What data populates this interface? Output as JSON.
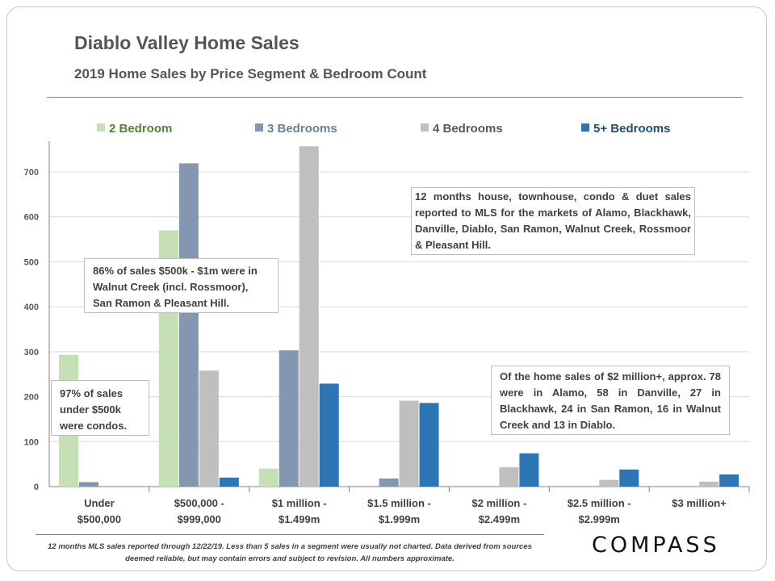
{
  "title": "Diablo Valley Home Sales",
  "subtitle": "2019 Home Sales by Price Segment & Bedroom Count",
  "colors": {
    "series": [
      "#c5e0b4",
      "#8497b0",
      "#bfbfbf",
      "#2e75b6"
    ],
    "legend_text": [
      "#548235",
      "#6b7f99",
      "#595959",
      "#1f4e79"
    ]
  },
  "chart_data": {
    "type": "bar",
    "title": "2019 Home Sales by Price Segment & Bedroom Count",
    "xlabel": "",
    "ylabel": "",
    "ylim": [
      0,
      760
    ],
    "yticks": [
      0,
      100,
      200,
      300,
      400,
      500,
      600,
      700
    ],
    "grid": true,
    "legend_position": "top",
    "categories": [
      [
        "Under",
        "$500,000"
      ],
      [
        "$500,000 -",
        "$999,000"
      ],
      [
        "$1 million -",
        "$1.499m"
      ],
      [
        "$1.5 million -",
        "$1.999m"
      ],
      [
        "$2 million -",
        "$2.499m"
      ],
      [
        "$2.5 million -",
        "$2.999m"
      ],
      [
        "$3 million+"
      ]
    ],
    "series": [
      {
        "name": "2 Bedroom",
        "values": [
          293,
          570,
          40,
          null,
          null,
          null,
          null
        ]
      },
      {
        "name": "3 Bedrooms",
        "values": [
          10,
          719,
          303,
          18,
          null,
          null,
          null
        ]
      },
      {
        "name": "4 Bedrooms",
        "values": [
          null,
          258,
          757,
          191,
          43,
          15,
          11
        ]
      },
      {
        "name": "5+ Bedrooms",
        "values": [
          null,
          20,
          229,
          186,
          74,
          38,
          27
        ]
      }
    ]
  },
  "annotations": {
    "note_500k_1m": "86% of sales $500k - $1m were in Walnut Creek (incl. Rossmoor), San Ramon & Pleasant Hill.",
    "note_under_500k": "97% of sales under $500k were condos.",
    "note_scope": "12 months house, townhouse, condo & duet sales reported to MLS for the markets of Alamo, Blackhawk, Danville, Diablo, San Ramon, Walnut Creek, Rossmoor & Pleasant Hill.",
    "note_2m_plus": "Of the home sales of $2 million+, approx. 78 were in Alamo, 58 in Danville, 27 in Blackhawk, 24 in San Ramon, 16 in Walnut Creek and 13 in Diablo."
  },
  "footer": "12 months MLS sales reported through 12/22/19. Less than 5 sales in a segment were usually not charted. Data derived from sources deemed reliable, but may contain errors and subject to revision. All numbers approximate.",
  "logo": "COMPASS"
}
